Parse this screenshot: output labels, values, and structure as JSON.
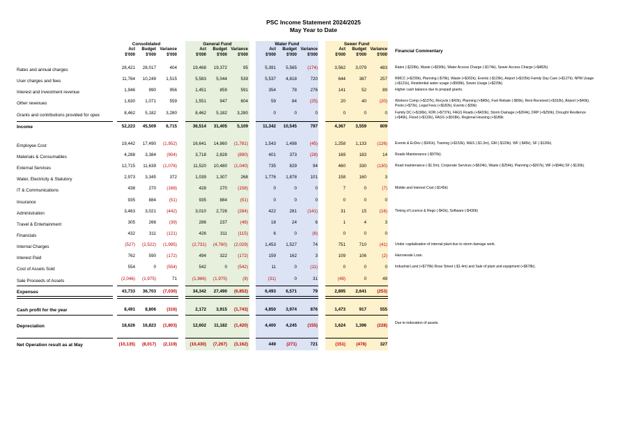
{
  "title": "PSC Income Statement 2024/2025",
  "subtitle": "May Year to Date",
  "groups": [
    "Consolidated",
    "General Fund",
    "Water Fund",
    "Sewer Fund"
  ],
  "col_headers": [
    "Act $'000",
    "Budget $'000",
    "Variance $'000"
  ],
  "commentary_header": "Financial Commentary",
  "colors": {
    "general_fund_band": "#e6f0dc",
    "water_fund_band": "#dbe3f4",
    "sewer_fund_band": "#fdf2cc",
    "negative_text": "#c00000"
  },
  "rows": [
    {
      "label": "Rates and annual charges",
      "vals": [
        "28,421",
        "28,017",
        "404",
        "19,468",
        "19,372",
        "95",
        "5,391",
        "5,565",
        "(174)",
        "3,562",
        "3,079",
        "483"
      ],
      "comment": "Rates (-$228k),  Waste (+$330k), Water Access Charge (-$174k), Sewer Access Charge (+$482k)."
    },
    {
      "label": "User charges and fees",
      "vals": [
        "11,764",
        "10,249",
        "1,515",
        "5,583",
        "5,044",
        "539",
        "5,537",
        "4,818",
        "720",
        "644",
        "387",
        "257"
      ],
      "comment": "RMCC (+$239k), Planning (-$78k), Waste (+$302k), Events (-$129k), Airport (+$105k) Family Day Care (+$127k). NPM Usage (+$121k), Residential water usage (+$568k), Sewer Usage (+$229k)"
    },
    {
      "label": "Interest and investment revenue",
      "vals": [
        "1,946",
        "990",
        "956",
        "1,451",
        "859",
        "591",
        "354",
        "78",
        "276",
        "141",
        "52",
        "89"
      ],
      "comment": "Higher cash balance due to prepaid grants."
    },
    {
      "label": "Other revenues",
      "vals": [
        "1,630",
        "1,071",
        "559",
        "1,551",
        "947",
        "604",
        "59",
        "84",
        "(25)",
        "20",
        "40",
        "(20)"
      ],
      "comment": "Workers Comp (+$137k), Recycle (-$42k), Planning (+$40k), Fuel Rebate (-$60k),  Rent Received (+$162k), Airport (+$40k), Pools (+$72k), Legal Fees (+$182k), Events (-$39k)"
    },
    {
      "label": "Grants and contributions provided for opex",
      "vals": [
        "8,462",
        "5,182",
        "3,280",
        "8,462",
        "5,182",
        "3,280",
        "0",
        "0",
        "0",
        "0",
        "0",
        "0"
      ],
      "comment": "Family DC (+$196k), R2R (+$737k), FAGS Roads (+$433k), Storm Damage (+$264k), DRP (+$250k), Drought Resilience (+$40k), Flood (+$132k), FAGS (+$918k), Regional Housing (+$186k"
    },
    {
      "label": "Income",
      "vals": [
        "52,223",
        "45,509",
        "6,715",
        "36,514",
        "31,405",
        "5,109",
        "11,342",
        "10,545",
        "797",
        "4,367",
        "3,559",
        "809"
      ],
      "comment": ""
    },
    {
      "label": "Employee Cost",
      "vals": [
        "19,442",
        "17,490",
        "(1,952)",
        "16,641",
        "14,860",
        "(1,781)",
        "1,543",
        "1,498",
        "(45)",
        "1,258",
        "1,133",
        "(126)"
      ],
      "comment": "Events & EcDev (-$341k), Training (+$153k), W&S (-$1.3m),  GM (-$129k). WF (-$45k), SF (-$126k)."
    },
    {
      "label": "Materials & Consumables",
      "vals": [
        "4,288",
        "3,384",
        "(904)",
        "3,718",
        "2,828",
        "(890)",
        "401",
        "373",
        "(28)",
        "169",
        "183",
        "14"
      ],
      "comment": "Roads Maintenance (-$970k)."
    },
    {
      "label": "External Services",
      "vals": [
        "12,715",
        "11,639",
        "(1,076)",
        "11,520",
        "10,480",
        "(1,040)",
        "735",
        "829",
        "94",
        "460",
        "330",
        "(130)"
      ],
      "comment": "Road maintenance (-$1.5m), Corporate Services (+$624k),  Waste (-$254k), Planning (+$267k), WF (+$94k) SF (-$130k)."
    },
    {
      "label": "Water, Electricity & Statutory",
      "vals": [
        "2,973",
        "3,345",
        "372",
        "1,039",
        "1,307",
        "268",
        "1,776",
        "1,878",
        "101",
        "158",
        "160",
        "3"
      ],
      "comment": ""
    },
    {
      "label": "IT & Communications",
      "vals": [
        "438",
        "270",
        "(168)",
        "428",
        "270",
        "(158)",
        "0",
        "0",
        "0",
        "7",
        "0",
        "(7)"
      ],
      "comment": "Mobile and Internet Cost (-$145k)"
    },
    {
      "label": "Insurance",
      "vals": [
        "935",
        "884",
        "(51)",
        "935",
        "884",
        "(51)",
        "0",
        "0",
        "0",
        "0",
        "0",
        "0"
      ],
      "comment": ""
    },
    {
      "label": "Administration",
      "vals": [
        "3,463",
        "3,021",
        "(442)",
        "3,010",
        "2,726",
        "(284)",
        "422",
        "281",
        "(141)",
        "31",
        "15",
        "(16)"
      ],
      "comment": "Timing of Licence & Rego (-$42k), Software (-$430k)"
    },
    {
      "label": "Travel & Entertainment",
      "vals": [
        "305",
        "266",
        "(39)",
        "286",
        "237",
        "(48)",
        "18",
        "24",
        "6",
        "1",
        "4",
        "3"
      ],
      "comment": ""
    },
    {
      "label": "Financials",
      "vals": [
        "432",
        "311",
        "(121)",
        "426",
        "311",
        "(115)",
        "6",
        "0",
        "(6)",
        "0",
        "0",
        "0"
      ],
      "comment": ""
    },
    {
      "label": "Internal Charges",
      "vals": [
        "(527)",
        "(2,522)",
        "(1,995)",
        "(2,731)",
        "(4,760)",
        "(2,029)",
        "1,453",
        "1,527",
        "74",
        "751",
        "710",
        "(41)"
      ],
      "comment": "Under capitalisation of internal plant due to storm damage work."
    },
    {
      "label": "Interest Paid",
      "vals": [
        "762",
        "590",
        "(172)",
        "494",
        "322",
        "(172)",
        "159",
        "162",
        "3",
        "109",
        "106",
        "(2)"
      ],
      "comment": "Harrowvale Loan."
    },
    {
      "label": "Cost of Assets Sold",
      "vals": [
        "554",
        "0",
        "(554)",
        "542",
        "0",
        "(542)",
        "11",
        "0",
        "(11)",
        "0",
        "0",
        "0"
      ],
      "comment": "Industrial Land (+$778k) Rose Street (-$1.4m) and Sale of plant and equipment (+$678k)."
    },
    {
      "label": "Sale Proceeds of Assets",
      "vals": [
        "(2,046)",
        "(1,975)",
        "71",
        "(1,966)",
        "(1,975)",
        "(9)",
        "(31)",
        "0",
        "31",
        "(49)",
        "0",
        "49"
      ],
      "comment": ""
    },
    {
      "label": "Expenses",
      "vals": [
        "43,733",
        "36,703",
        "(7,030)",
        "34,342",
        "27,490",
        "(6,852)",
        "6,493",
        "6,571",
        "79",
        "2,895",
        "2,641",
        "(253)"
      ],
      "comment": ""
    },
    {
      "label": "Cash profit for the year",
      "vals": [
        "8,491",
        "8,806",
        "(316)",
        "2,172",
        "3,915",
        "(1,743)",
        "4,850",
        "3,974",
        "876",
        "1,473",
        "917",
        "555"
      ],
      "comment": ""
    },
    {
      "label": "Depreciation",
      "vals": [
        "18,626",
        "16,823",
        "(1,803)",
        "12,602",
        "11,182",
        "(1,420)",
        "4,400",
        "4,245",
        "(155)",
        "1,624",
        "1,396",
        "(228)"
      ],
      "comment": "Due to indexation of assets."
    },
    {
      "label": "Net Operation result as at May",
      "vals": [
        "(10,135)",
        "(8,017)",
        "(2,119)",
        "(10,430)",
        "(7,267)",
        "(3,162)",
        "449",
        "(271)",
        "721",
        "(151)",
        "(478)",
        "327"
      ],
      "comment": ""
    }
  ]
}
